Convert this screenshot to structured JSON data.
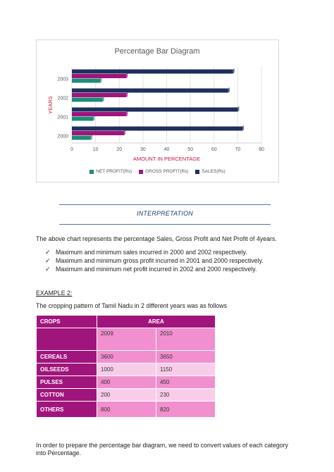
{
  "chart_data": {
    "type": "bar",
    "orientation": "horizontal",
    "title": "Percentage Bar Diagram",
    "xlabel": "AMOUNT IN PERCENTAGE",
    "ylabel": "YEARS",
    "categories": [
      "2000",
      "2001",
      "2002",
      "2003"
    ],
    "xlim": [
      0,
      80
    ],
    "xticks": [
      "0",
      "10",
      "20",
      "30",
      "40",
      "50",
      "60",
      "70",
      "80"
    ],
    "grid": true,
    "legend_position": "bottom",
    "series": [
      {
        "name": "NET PROFIT(Rs)",
        "color": "#1f8c78",
        "values": [
          8,
          9,
          13,
          12
        ]
      },
      {
        "name": "GROSS PROFIT(Rs)",
        "color": "#a0157c",
        "values": [
          22,
          23,
          23,
          23
        ]
      },
      {
        "name": "SALES(Rs)",
        "color": "#1f2f5e",
        "values": [
          72,
          70,
          66,
          68
        ]
      }
    ]
  },
  "interpretation": {
    "heading": "INTERPRETATION",
    "intro": "The above chart represents the percentage Sales, Gross Profit and Net Profit of 4years.",
    "check_symbol": "✓",
    "points": [
      "Maximum and minimum sales incurred in 2000 and 2002 respectively.",
      "Maximum and minimum gross profit incurred in 2001 and 2000 respectively.",
      "Maximum and minimum net profit incurred in 2002 and 2000 respectively."
    ]
  },
  "example": {
    "heading": "EXAMPLE 2:",
    "intro": "The cropping pattern of Tamil Nadu in 2 different years was as follows",
    "table": {
      "col_crops": "CROPS",
      "col_area": "AREA",
      "years": [
        "2009",
        "2010"
      ],
      "rows": [
        {
          "crop": "CEREALS",
          "values": [
            "3600",
            "3650"
          ]
        },
        {
          "crop": "OILSEEDS",
          "values": [
            "1000",
            "1150"
          ]
        },
        {
          "crop": "PULSES",
          "values": [
            "400",
            "450"
          ]
        },
        {
          "crop": "COTTON",
          "values": [
            "200",
            "230"
          ]
        },
        {
          "crop": "OTHERS",
          "values": [
            "800",
            "820"
          ]
        }
      ]
    },
    "closing": "In order to prepare the percentage bar diagram, we need to convert values of each category into Percentage."
  }
}
